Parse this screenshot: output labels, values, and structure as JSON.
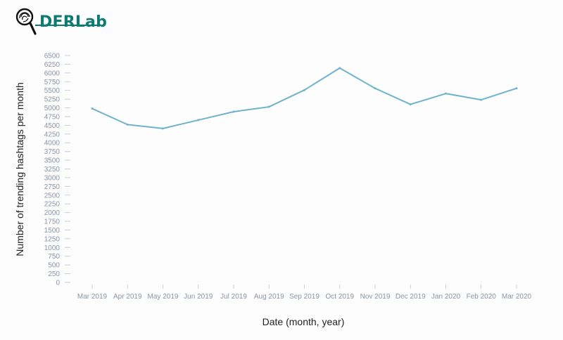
{
  "brand": {
    "logo_text": "DFRLab",
    "color": "#0d7b72"
  },
  "chart_data": {
    "type": "line",
    "title": "",
    "xlabel": "Date (month, year)",
    "ylabel": "Number of trending hashtags per month",
    "categories": [
      "Mar 2019",
      "Apr 2019",
      "May 2019",
      "Jun 2019",
      "Jul 2019",
      "Aug 2019",
      "Sep 2019",
      "Oct 2019",
      "Nov 2019",
      "Dec 2019",
      "Jan 2020",
      "Feb 2020",
      "Mar 2020"
    ],
    "series": [
      {
        "values": [
          4980,
          4520,
          4410,
          4650,
          4890,
          5030,
          5510,
          6140,
          5560,
          5100,
          5410,
          5230,
          5560
        ],
        "color": "#6fb3cc"
      }
    ],
    "ylim": [
      0,
      6500
    ],
    "yticks": [
      0,
      250,
      500,
      750,
      1000,
      1250,
      1500,
      1750,
      2000,
      2250,
      2500,
      2750,
      3000,
      3250,
      3500,
      3750,
      4000,
      4250,
      4500,
      4750,
      5000,
      5250,
      5500,
      5750,
      6000,
      6250,
      6500
    ],
    "ytick_labels": [
      "0",
      "250",
      "500",
      "750",
      "1000",
      "1250",
      "1500",
      "1750",
      "2000",
      "2250",
      "2500",
      "2750",
      "3000",
      "3250",
      "3500",
      "3750",
      "4000",
      "4250",
      "4500",
      "4750",
      "5000",
      "5250",
      "5500",
      "5750",
      "6000",
      "6250",
      "6500"
    ],
    "grid": false,
    "legend": "none"
  }
}
